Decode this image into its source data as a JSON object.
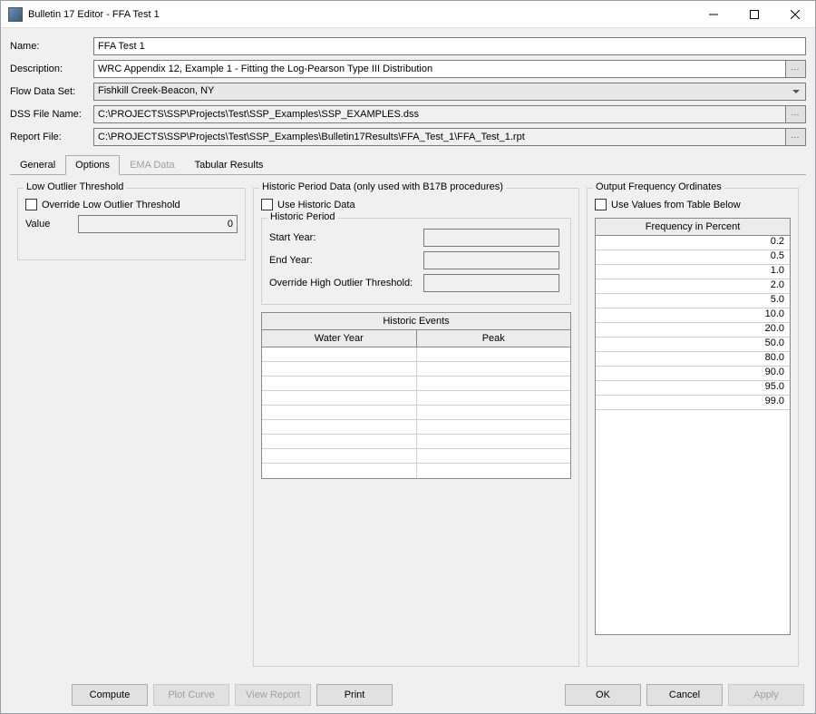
{
  "window": {
    "title": "Bulletin 17 Editor - FFA Test 1"
  },
  "form": {
    "name_label": "Name:",
    "name_value": "FFA Test 1",
    "desc_label": "Description:",
    "desc_value": "WRC Appendix 12, Example 1 - Fitting the Log-Pearson Type III Distribution",
    "flow_label": "Flow Data Set:",
    "flow_value": "Fishkill Creek-Beacon, NY",
    "dss_label": "DSS File Name:",
    "dss_value": "C:\\PROJECTS\\SSP\\Projects\\Test\\SSP_Examples\\SSP_EXAMPLES.dss",
    "report_label": "Report File:",
    "report_value": "C:\\PROJECTS\\SSP\\Projects\\Test\\SSP_Examples\\Bulletin17Results\\FFA_Test_1\\FFA_Test_1.rpt"
  },
  "tabs": {
    "general": "General",
    "options": "Options",
    "ema": "EMA Data",
    "tabular": "Tabular Results"
  },
  "low_outlier": {
    "title": "Low Outlier Threshold",
    "override_label": "Override Low Outlier Threshold",
    "value_label": "Value",
    "value_value": "0"
  },
  "historic": {
    "title": "Historic Period Data (only used with B17B procedures)",
    "use_label": "Use Historic Data",
    "period_title": "Historic Period",
    "start_label": "Start Year:",
    "end_label": "End Year:",
    "override_high_label": "Override High Outlier Threshold:",
    "events_title": "Historic Events",
    "col_water_year": "Water Year",
    "col_peak": "Peak"
  },
  "output": {
    "title": "Output Frequency Ordinates",
    "use_table_label": "Use Values from Table Below",
    "freq_header": "Frequency in Percent",
    "rows": [
      "0.2",
      "0.5",
      "1.0",
      "2.0",
      "5.0",
      "10.0",
      "20.0",
      "50.0",
      "80.0",
      "90.0",
      "95.0",
      "99.0"
    ]
  },
  "buttons": {
    "compute": "Compute",
    "plot": "Plot Curve",
    "view": "View Report",
    "print": "Print",
    "ok": "OK",
    "cancel": "Cancel",
    "apply": "Apply"
  },
  "colors": {
    "window_bg": "#f0f0f0",
    "border": "#7a7a7a",
    "grid_border": "#888888",
    "grid_line": "#cfcfcf",
    "disabled_text": "#a0a0a0",
    "button_bg": "#e1e1e1"
  },
  "historic_rows": 9
}
